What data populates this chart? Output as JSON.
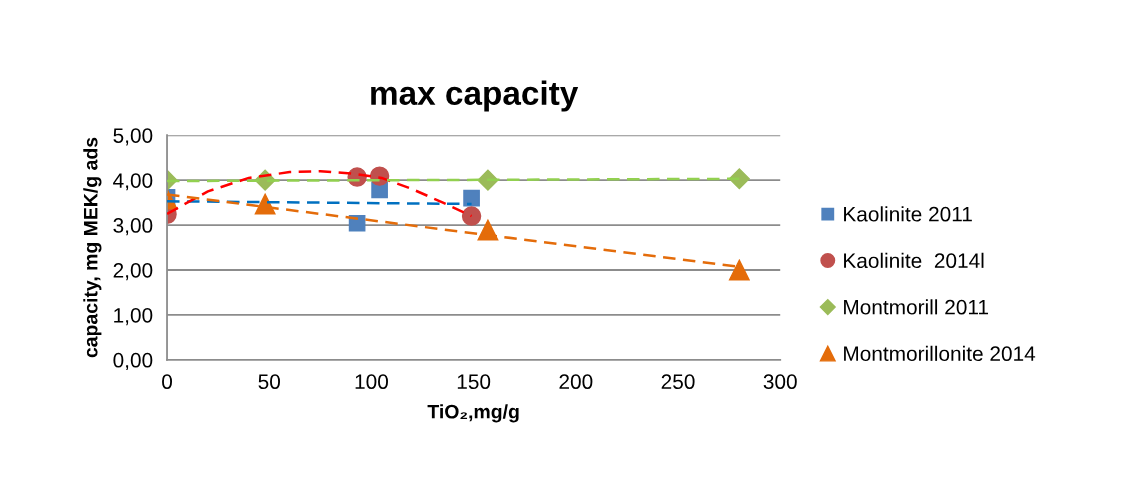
{
  "chart_data": {
    "type": "scatter",
    "title": "max capacity",
    "xlabel": "TiO₂,mg/g",
    "ylabel": "capacity, mg MEK/g ads",
    "xlim": [
      0,
      300
    ],
    "xticks": [
      0,
      50,
      100,
      150,
      200,
      250,
      300
    ],
    "ylim": [
      0,
      5
    ],
    "yticks": [
      {
        "value": 0,
        "label": "0,00"
      },
      {
        "value": 1,
        "label": "1,00"
      },
      {
        "value": 2,
        "label": "2,00"
      },
      {
        "value": 3,
        "label": "3,00"
      },
      {
        "value": 4,
        "label": "4,00"
      },
      {
        "value": 5,
        "label": "5,00"
      }
    ],
    "grid": "y",
    "legend": "right",
    "series": [
      {
        "type": "line",
        "color": "#0070c0",
        "line_style": "dashed",
        "marker": "none",
        "x": [
          0,
          149
        ],
        "values": [
          3.53,
          3.47
        ]
      },
      {
        "type": "line",
        "color": "#ff0000",
        "line_style": "dashed",
        "marker": "none",
        "x": [
          0,
          20,
          40,
          60,
          75,
          90,
          105,
          120,
          135,
          149
        ],
        "values": [
          3.25,
          3.75,
          4.05,
          4.18,
          4.2,
          4.15,
          4.05,
          3.8,
          3.5,
          3.2
        ]
      },
      {
        "type": "line",
        "color": "#92d050",
        "line_style": "dashed",
        "marker": "none",
        "x": [
          0,
          280
        ],
        "values": [
          3.98,
          4.03
        ]
      },
      {
        "type": "line",
        "color": "#e46c0a",
        "line_style": "dashed",
        "marker": "none",
        "x": [
          0,
          280
        ],
        "values": [
          3.68,
          2.07
        ]
      },
      {
        "name": "Kaolinite 2011",
        "color": "#4f81bd",
        "marker": "square",
        "x": [
          0,
          93,
          104,
          149
        ],
        "values": [
          3.62,
          3.04,
          3.78,
          3.6
        ]
      },
      {
        "name": "Kaolinite  2014l",
        "color": "#c0504d",
        "marker": "circle",
        "x": [
          0,
          93,
          104,
          149
        ],
        "values": [
          3.24,
          4.07,
          4.09,
          3.2
        ]
      },
      {
        "name": "Montmorill 2011",
        "color": "#9bbb59",
        "marker": "diamond",
        "x": [
          0,
          48,
          157,
          280
        ],
        "values": [
          4.0,
          4.0,
          4.0,
          4.03
        ]
      },
      {
        "name": "Montmorillonite 2014",
        "color": "#e46c0a",
        "marker": "triangle",
        "x": [
          0,
          48,
          157,
          280
        ],
        "values": [
          3.58,
          3.47,
          2.89,
          2.0
        ]
      }
    ]
  }
}
